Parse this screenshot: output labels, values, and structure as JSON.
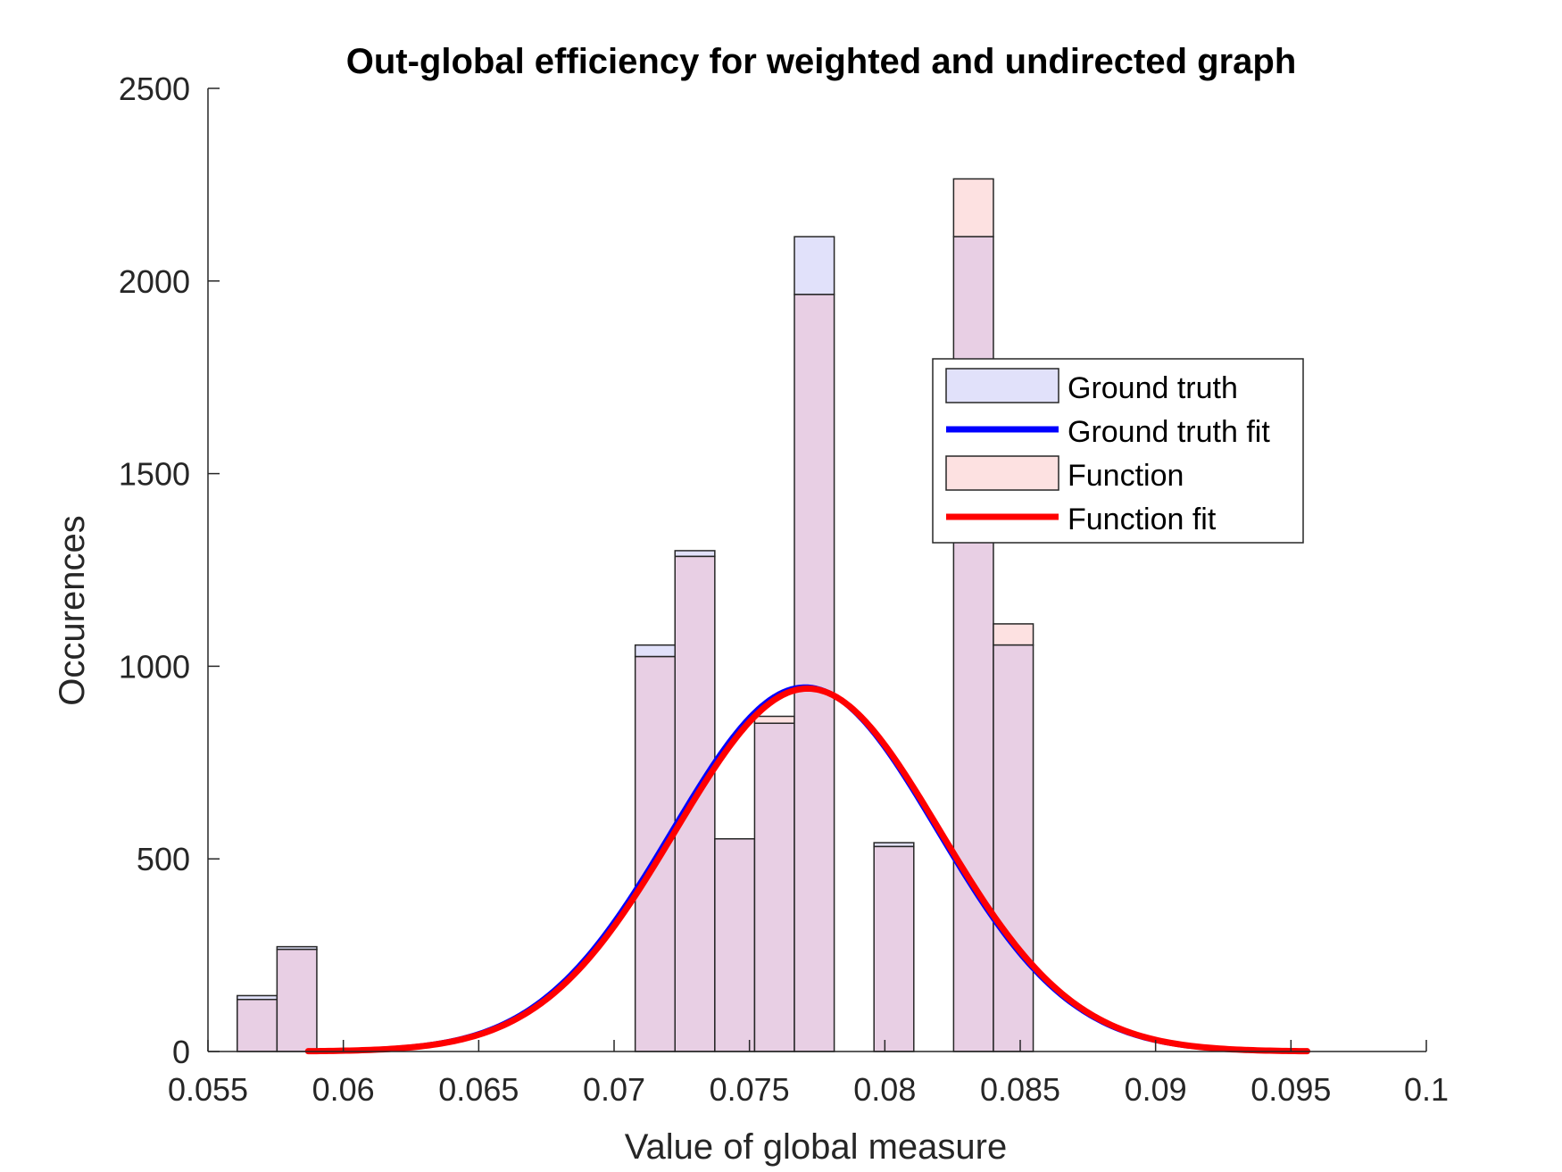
{
  "chart_data": {
    "type": "bar",
    "title": "Out-global efficiency for weighted and undirected graph",
    "xlabel": "Value of global measure",
    "ylabel": "Occurences",
    "xlim": [
      0.055,
      0.1
    ],
    "ylim": [
      0,
      2500
    ],
    "xticks": [
      "0.055",
      "0.06",
      "0.065",
      "0.07",
      "0.075",
      "0.08",
      "0.085",
      "0.09",
      "0.095",
      "0.1"
    ],
    "xtick_values": [
      0.055,
      0.06,
      0.065,
      0.07,
      0.075,
      0.08,
      0.085,
      0.09,
      0.095,
      0.1
    ],
    "yticks": [
      "0",
      "500",
      "1000",
      "1500",
      "2000",
      "2500"
    ],
    "ytick_values": [
      0,
      500,
      1000,
      1500,
      2000,
      2500
    ],
    "bin_edges": [
      0.05608,
      0.05755,
      0.05902,
      0.06049,
      0.06196,
      0.06343,
      0.0649,
      0.06637,
      0.06784,
      0.06931,
      0.07078,
      0.07225,
      0.07372,
      0.07519,
      0.07666,
      0.07813,
      0.0796,
      0.08107,
      0.08254,
      0.08401,
      0.08548
    ],
    "series": [
      {
        "name": "Ground truth",
        "kind": "histogram",
        "values": [
          145,
          272,
          0,
          0,
          0,
          0,
          0,
          0,
          0,
          0,
          1055,
          1300,
          552,
          852,
          2115,
          0,
          542,
          0,
          2115,
          1055
        ],
        "color": "#e1e1fa"
      },
      {
        "name": "Function",
        "kind": "histogram",
        "values": [
          135,
          265,
          0,
          0,
          0,
          0,
          0,
          0,
          0,
          0,
          1025,
          1285,
          552,
          870,
          1965,
          0,
          532,
          0,
          2265,
          1110
        ],
        "color": "#fde1e1"
      },
      {
        "name": "Ground truth fit",
        "kind": "line",
        "color": "#0000ff",
        "x_range": [
          0.0587,
          0.0956
        ],
        "peak_x": 0.07705,
        "peak_y": 946,
        "sigma": 0.0049
      },
      {
        "name": "Function fit",
        "kind": "line",
        "color": "#ff0000",
        "x_range": [
          0.0587,
          0.0956
        ],
        "peak_x": 0.07715,
        "peak_y": 942,
        "sigma": 0.0049
      }
    ],
    "overlap_color": "#e8cfe4",
    "legend_position": "upper-right, inside axes",
    "grid": false
  }
}
